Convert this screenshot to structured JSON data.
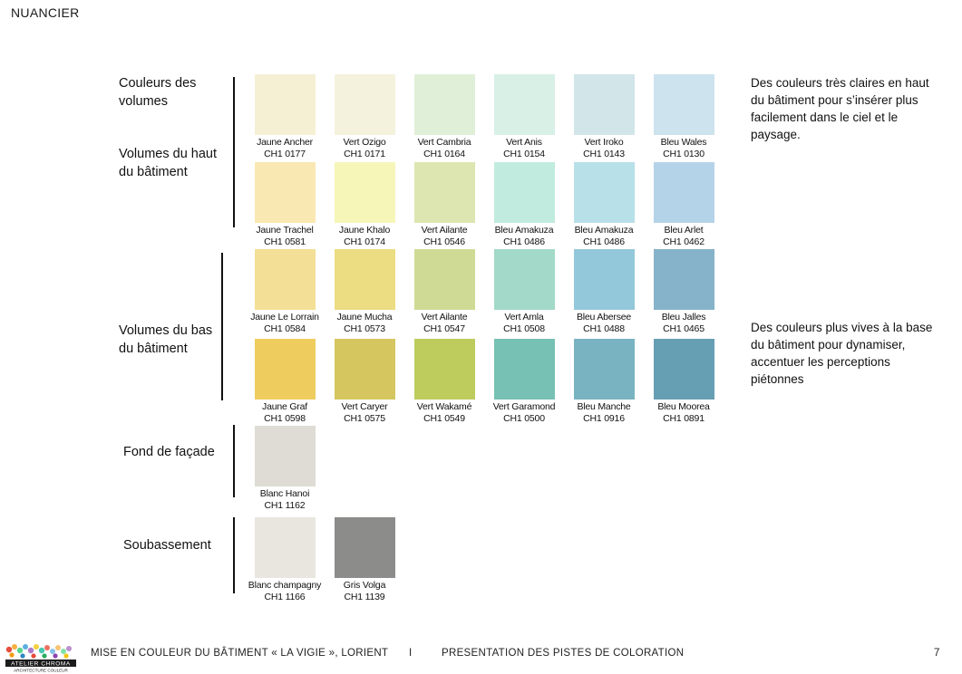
{
  "header": {
    "title": "NUANCIER"
  },
  "labels": {
    "couleurs_volumes": "Couleurs des volumes",
    "haut": "Volumes du haut du bâtiment",
    "bas": "Volumes du bas du bâtiment",
    "fond": "Fond de façade",
    "soubassement": "Soubassement"
  },
  "notes": {
    "top": "Des couleurs très claires en haut du bâtiment pour s’insérer plus facilement dans le ciel et le paysage.",
    "bottom": "Des couleurs plus vives à la base du bâtiment pour dynamiser, accentuer les perceptions piétonnes"
  },
  "swatch_rows": [
    [
      {
        "name": "Jaune Ancher",
        "code": "CH1 0177",
        "color": "#f5f0d4"
      },
      {
        "name": "Vert Ozigo",
        "code": "CH1 0171",
        "color": "#f4f2dc"
      },
      {
        "name": "Vert Cambria",
        "code": "CH1 0164",
        "color": "#e0efd7"
      },
      {
        "name": "Vert Anis",
        "code": "CH1 0154",
        "color": "#d8f0e6"
      },
      {
        "name": "Vert Iroko",
        "code": "CH1 0143",
        "color": "#d2e6ea"
      },
      {
        "name": "Bleu Wales",
        "code": "CH1 0130",
        "color": "#cde3ee"
      }
    ],
    [
      {
        "name": "Jaune Trachel",
        "code": "CH1 0581",
        "color": "#f9e8b2"
      },
      {
        "name": "Jaune Khalo",
        "code": "CH1 0174",
        "color": "#f7f6b9"
      },
      {
        "name": "Vert Ailante",
        "code": "CH1 0546",
        "color": "#dde6b1"
      },
      {
        "name": "Bleu Amakuza",
        "code": "CH1 0486",
        "color": "#c1ebdf"
      },
      {
        "name": "Bleu Amakuza",
        "code": "CH1 0486",
        "color": "#b8e0e8"
      },
      {
        "name": "Bleu Arlet",
        "code": "CH1 0462",
        "color": "#b5d3e8"
      }
    ],
    [
      {
        "name": "Jaune Le Lorrain",
        "code": "CH1 0584",
        "color": "#f4df96"
      },
      {
        "name": "Jaune Mucha",
        "code": "CH1 0573",
        "color": "#ecdc82"
      },
      {
        "name": "Vert Ailante",
        "code": "CH1 0547",
        "color": "#cfdb94"
      },
      {
        "name": "Vert Amla",
        "code": "CH1 0508",
        "color": "#a2d9c8"
      },
      {
        "name": "Bleu Abersee",
        "code": "CH1 0488",
        "color": "#93c8da"
      },
      {
        "name": "Bleu Jalles",
        "code": "CH1 0465",
        "color": "#86b3c9"
      }
    ],
    [
      {
        "name": "Jaune Graf",
        "code": "CH1 0598",
        "color": "#eecd5e"
      },
      {
        "name": "Vert Caryer",
        "code": "CH1 0575",
        "color": "#d5c65f"
      },
      {
        "name": "Vert Wakamé",
        "code": "CH1 0549",
        "color": "#bdcc5d"
      },
      {
        "name": "Vert Garamond",
        "code": "CH1 0500",
        "color": "#77c0b4"
      },
      {
        "name": "Bleu Manche",
        "code": "CH1 0916",
        "color": "#79b3c1"
      },
      {
        "name": "Bleu Moorea",
        "code": "CH1 0891",
        "color": "#669eb4"
      }
    ]
  ],
  "fond": {
    "name": "Blanc Hanoi",
    "code": "CH1 1162",
    "color": "#dfdcd5"
  },
  "soubassement": [
    {
      "name": "Blanc champagny",
      "code": "CH1 1166",
      "color": "#e8e6df"
    },
    {
      "name": "Gris Volga",
      "code": "CH1 1139",
      "color": "#8c8d8b"
    }
  ],
  "footer": {
    "logo_text": "ATELIER CHROMA",
    "logo_subtext": "ARCHITECTURE COULEUR",
    "project": "MISE EN COULEUR DU BÂTIMENT « LA VIGIE », LORIENT",
    "separator": "I",
    "section": "PRESENTATION DES PISTES DE COLORATION",
    "page": "7"
  }
}
